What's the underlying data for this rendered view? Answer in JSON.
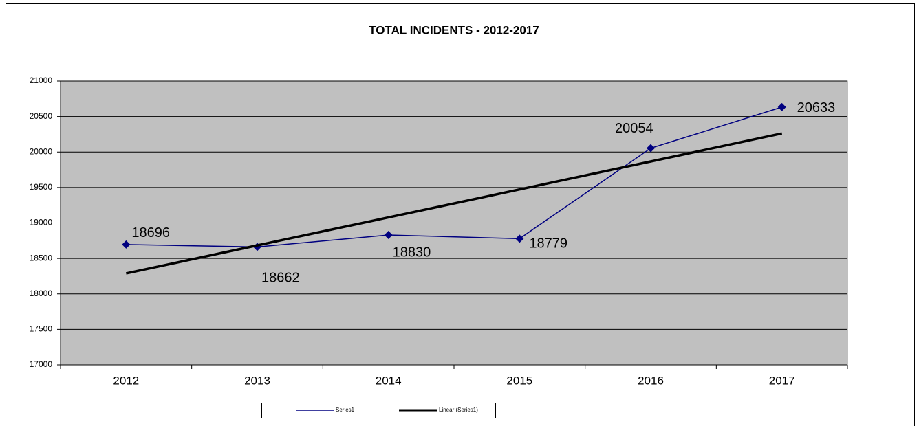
{
  "chart_data": {
    "type": "line",
    "title": "TOTAL INCIDENTS - 2012-2017",
    "categories": [
      "2012",
      "2013",
      "2014",
      "2015",
      "2016",
      "2017"
    ],
    "series": [
      {
        "name": "Series1",
        "color": "#000080",
        "values": [
          18696,
          18662,
          18830,
          18779,
          20054,
          20633
        ]
      },
      {
        "name": "Linear (Series1)",
        "color": "#000000",
        "values": [
          18289,
          18684,
          19078,
          19473,
          19867,
          20262
        ]
      }
    ],
    "ylim": [
      17000,
      21000
    ],
    "yticks": [
      17000,
      17500,
      18000,
      18500,
      19000,
      19500,
      20000,
      20500,
      21000
    ],
    "grid": true,
    "legend": "bottom"
  }
}
